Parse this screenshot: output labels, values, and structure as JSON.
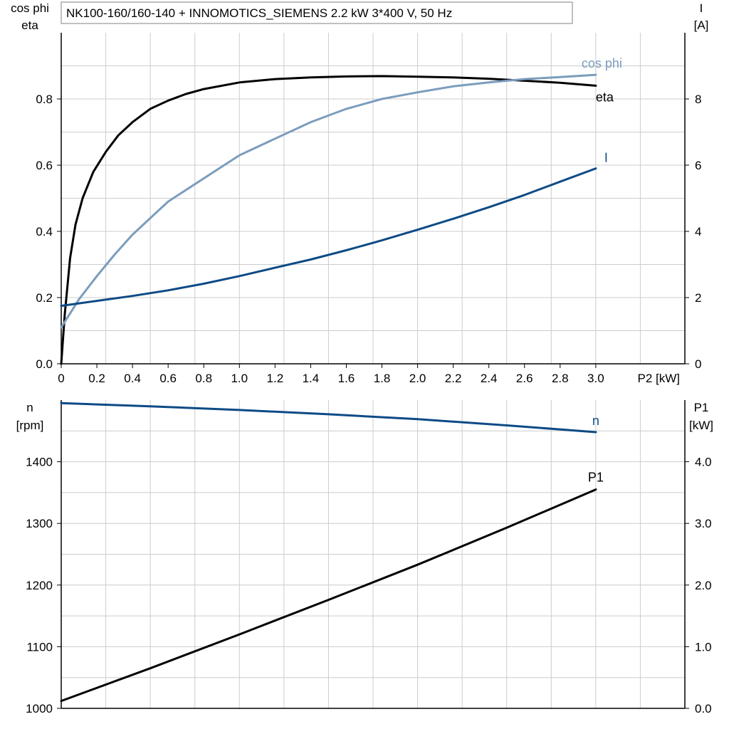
{
  "title": "NK100-160/160-140 + INNOMOTICS_SIEMENS   2.2 kW   3*400 V, 50 Hz",
  "colors": {
    "eta": "#000000",
    "cos_phi": "#7b9dbd",
    "current": "#0d4a85",
    "speed": "#0d4a85",
    "p1": "#000000",
    "grid": "#cccccc"
  },
  "chart_data": [
    {
      "type": "line",
      "xlabel": "P2 [kW]",
      "xlim": [
        0,
        3.5
      ],
      "x_ticks": [
        "0",
        "0.2",
        "0.4",
        "0.6",
        "0.8",
        "1.0",
        "1.2",
        "1.4",
        "1.6",
        "1.8",
        "2.0",
        "2.2",
        "2.4",
        "2.6",
        "2.8",
        "3.0"
      ],
      "ylabel_left": [
        "cos phi",
        "eta"
      ],
      "ylim_left": [
        0,
        1.0
      ],
      "y_ticks_left": [
        "0.0",
        "0.2",
        "0.4",
        "0.6",
        "0.8"
      ],
      "ylabel_right": [
        "I",
        "[A]"
      ],
      "ylim_right": [
        0,
        10
      ],
      "y_ticks_right": [
        "0",
        "2",
        "4",
        "6",
        "8"
      ],
      "grid": true,
      "series": [
        {
          "name": "eta",
          "axis": "left",
          "x": [
            0,
            0.02,
            0.05,
            0.08,
            0.12,
            0.18,
            0.25,
            0.32,
            0.4,
            0.5,
            0.6,
            0.7,
            0.8,
            1.0,
            1.2,
            1.4,
            1.6,
            1.8,
            2.0,
            2.2,
            2.4,
            2.6,
            2.8,
            3.0
          ],
          "y": [
            0.0,
            0.15,
            0.32,
            0.42,
            0.5,
            0.58,
            0.64,
            0.69,
            0.73,
            0.77,
            0.795,
            0.815,
            0.83,
            0.85,
            0.86,
            0.865,
            0.868,
            0.869,
            0.867,
            0.865,
            0.861,
            0.855,
            0.849,
            0.84
          ]
        },
        {
          "name": "cos phi",
          "axis": "left",
          "x": [
            0,
            0.1,
            0.2,
            0.3,
            0.4,
            0.5,
            0.6,
            0.8,
            1.0,
            1.2,
            1.4,
            1.6,
            1.8,
            2.0,
            2.2,
            2.4,
            2.6,
            2.8,
            3.0
          ],
          "y": [
            0.11,
            0.195,
            0.265,
            0.33,
            0.39,
            0.44,
            0.49,
            0.56,
            0.63,
            0.68,
            0.73,
            0.77,
            0.8,
            0.82,
            0.838,
            0.85,
            0.86,
            0.866,
            0.873
          ]
        },
        {
          "name": "I",
          "axis": "right",
          "x": [
            0,
            0.2,
            0.4,
            0.6,
            0.8,
            1.0,
            1.2,
            1.4,
            1.6,
            1.8,
            2.0,
            2.2,
            2.4,
            2.6,
            2.8,
            3.0
          ],
          "y": [
            1.75,
            1.9,
            2.05,
            2.22,
            2.42,
            2.65,
            2.9,
            3.15,
            3.43,
            3.73,
            4.05,
            4.38,
            4.73,
            5.1,
            5.5,
            5.9
          ]
        }
      ]
    },
    {
      "type": "line",
      "xlim": [
        0,
        3.5
      ],
      "ylabel_left": [
        "n",
        "[rpm]"
      ],
      "ylim_left": [
        1000,
        1500
      ],
      "y_ticks_left": [
        "1000",
        "1100",
        "1200",
        "1300",
        "1400"
      ],
      "ylabel_right": [
        "P1",
        "[kW]"
      ],
      "ylim_right": [
        0,
        5.0
      ],
      "y_ticks_right": [
        "0.0",
        "1.0",
        "2.0",
        "3.0",
        "4.0"
      ],
      "grid": true,
      "series": [
        {
          "name": "n",
          "axis": "left",
          "x": [
            0,
            0.5,
            1.0,
            1.5,
            2.0,
            2.5,
            3.0
          ],
          "y": [
            1495,
            1490,
            1484,
            1477,
            1469,
            1459,
            1448
          ]
        },
        {
          "name": "P1",
          "axis": "right",
          "x": [
            0,
            0.5,
            1.0,
            1.5,
            2.0,
            2.5,
            3.0
          ],
          "y": [
            0.12,
            0.65,
            1.2,
            1.76,
            2.33,
            2.93,
            3.55
          ]
        }
      ]
    }
  ]
}
